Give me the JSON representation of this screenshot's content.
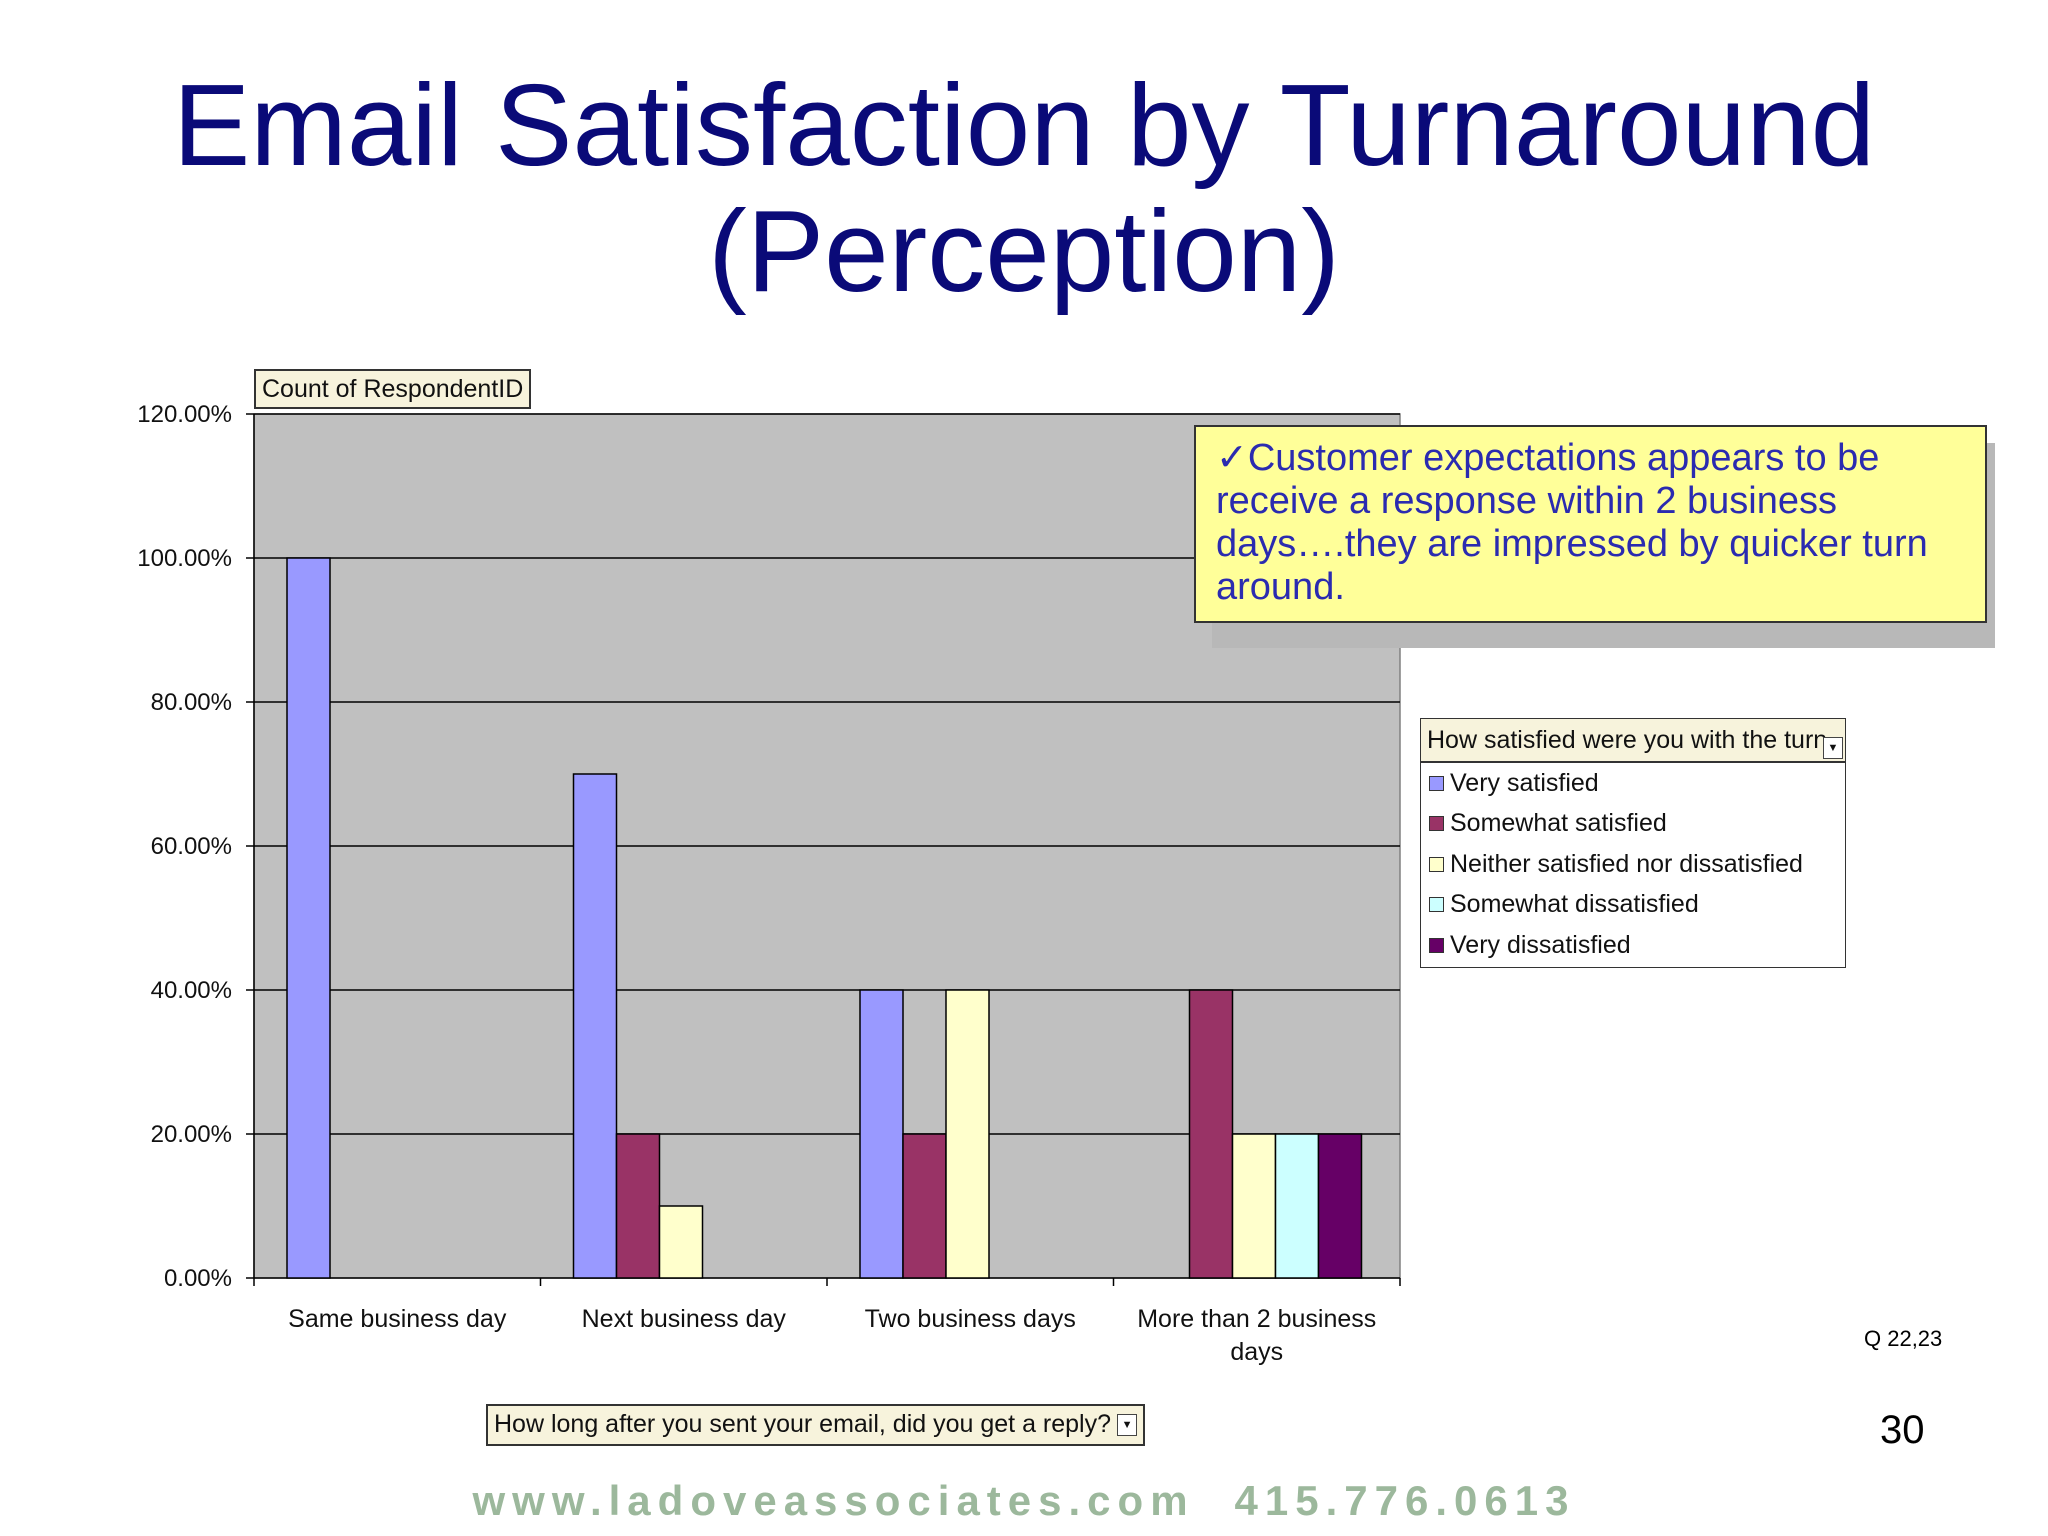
{
  "slide": {
    "title_line1": "Email Satisfaction by Turnaround",
    "title_line2": "(Perception)",
    "callout": "✓Customer expectations appears to be receive a response within 2 business days….they are impressed by quicker turn around.",
    "data_field_button": "Count of RespondentID",
    "row_field_button": "How long after you sent your email, did you get a reply?",
    "question_ref": "Q 22,23",
    "page_number": "30",
    "footer_url": "www.ladoveassociates.com",
    "footer_phone": "415.776.0613"
  },
  "chart_data": {
    "type": "bar",
    "categories": [
      "Same business day",
      "Next business day",
      "Two business days",
      "More than 2 business days"
    ],
    "category_lines": [
      [
        "Same business day"
      ],
      [
        "Next business day"
      ],
      [
        "Two business days"
      ],
      [
        "More than 2 business",
        "days"
      ]
    ],
    "ylim": [
      0,
      120
    ],
    "yticks": [
      0,
      20,
      40,
      60,
      80,
      100,
      120
    ],
    "ytick_labels": [
      "0.00%",
      "20.00%",
      "40.00%",
      "60.00%",
      "80.00%",
      "100.00%",
      "120.00%"
    ],
    "grid": true,
    "legend_title": "How satisfied were you with the turn",
    "legend_position": "right",
    "series": [
      {
        "name": "Very satisfied",
        "color": "#9999ff",
        "values": [
          100,
          70,
          40,
          0
        ]
      },
      {
        "name": "Somewhat satisfied",
        "color": "#993366",
        "values": [
          0,
          20,
          20,
          40
        ]
      },
      {
        "name": "Neither satisfied nor dissatisfied",
        "color": "#ffffcc",
        "values": [
          0,
          10,
          40,
          20
        ]
      },
      {
        "name": "Somewhat dissatisfied",
        "color": "#ccffff",
        "values": [
          0,
          0,
          0,
          20
        ]
      },
      {
        "name": "Very dissatisfied",
        "color": "#660066",
        "values": [
          0,
          0,
          0,
          20
        ]
      }
    ],
    "plot_background": "#c0c0c0"
  }
}
